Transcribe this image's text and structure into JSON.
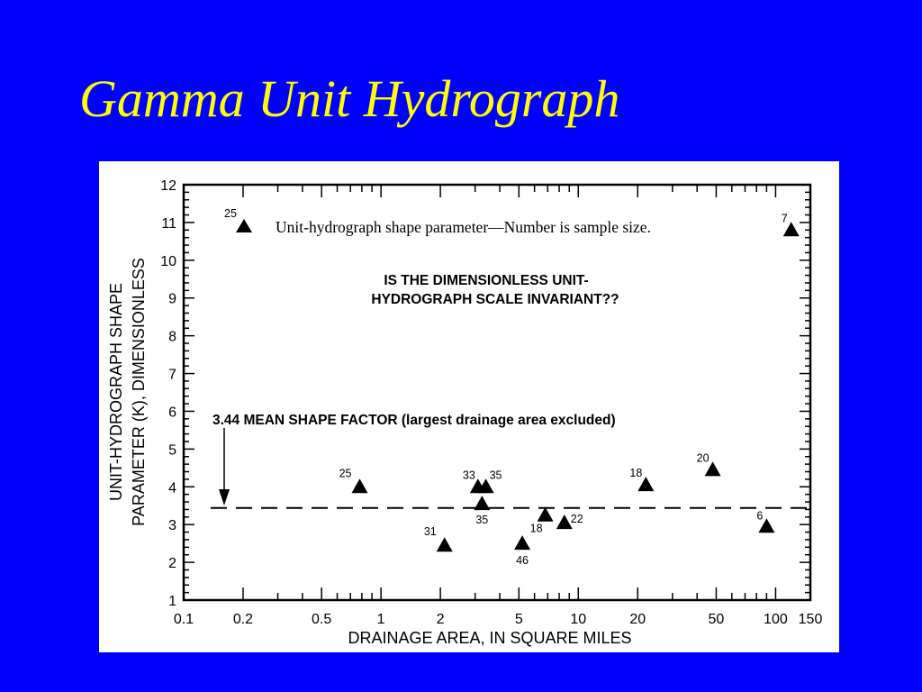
{
  "slide": {
    "title": "Gamma Unit Hydrograph",
    "title_color": "#ffff00",
    "background_color": "#0000ff"
  },
  "chart_data": {
    "type": "scatter",
    "x_scale": "log",
    "xlabel": "DRAINAGE AREA, IN SQUARE MILES",
    "ylabel_line1": "UNIT-HYDROGRAPH SHAPE",
    "ylabel_line2": "PARAMETER (K), DIMENSIONLESS",
    "xlim": [
      0.1,
      150
    ],
    "ylim": [
      1,
      12
    ],
    "x_ticks": [
      0.1,
      0.2,
      0.5,
      1,
      2,
      5,
      10,
      20,
      50,
      100,
      150
    ],
    "x_tick_labels": [
      "0.1",
      "0.2",
      "0.5",
      "1",
      "2",
      "5",
      "10",
      "20",
      "50",
      "100",
      "150"
    ],
    "y_ticks": [
      1,
      2,
      3,
      4,
      5,
      6,
      7,
      8,
      9,
      10,
      11,
      12
    ],
    "y_tick_labels": [
      "1",
      "2",
      "3",
      "4",
      "5",
      "6",
      "7",
      "8",
      "9",
      "10",
      "11",
      "12"
    ],
    "grid": false,
    "marker": "triangle",
    "legend": {
      "text": "Unit-hydrograph shape parameter—Number is sample size.",
      "sample_size": "25"
    },
    "annotation": {
      "line1": "IS THE DIMENSIONLESS UNIT-",
      "line2": "HYDROGRAPH SCALE INVARIANT??"
    },
    "mean_line": {
      "value": 3.44,
      "label_bold": "3.44 MEAN SHAPE FACTOR",
      "label_rest": " (largest drainage area excluded)"
    },
    "points": [
      {
        "x": 0.78,
        "y": 4.0,
        "n": "25"
      },
      {
        "x": 2.1,
        "y": 2.45,
        "n": "31"
      },
      {
        "x": 3.1,
        "y": 4.0,
        "n": "33"
      },
      {
        "x": 3.4,
        "y": 4.0,
        "n": "35"
      },
      {
        "x": 3.25,
        "y": 3.55,
        "n": "35"
      },
      {
        "x": 5.2,
        "y": 2.5,
        "n": "46"
      },
      {
        "x": 6.8,
        "y": 3.25,
        "n": "18"
      },
      {
        "x": 8.5,
        "y": 3.05,
        "n": "22"
      },
      {
        "x": 22,
        "y": 4.05,
        "n": "18"
      },
      {
        "x": 48,
        "y": 4.45,
        "n": "20"
      },
      {
        "x": 90,
        "y": 2.95,
        "n": "6"
      },
      {
        "x": 120,
        "y": 10.8,
        "n": "7"
      }
    ]
  }
}
